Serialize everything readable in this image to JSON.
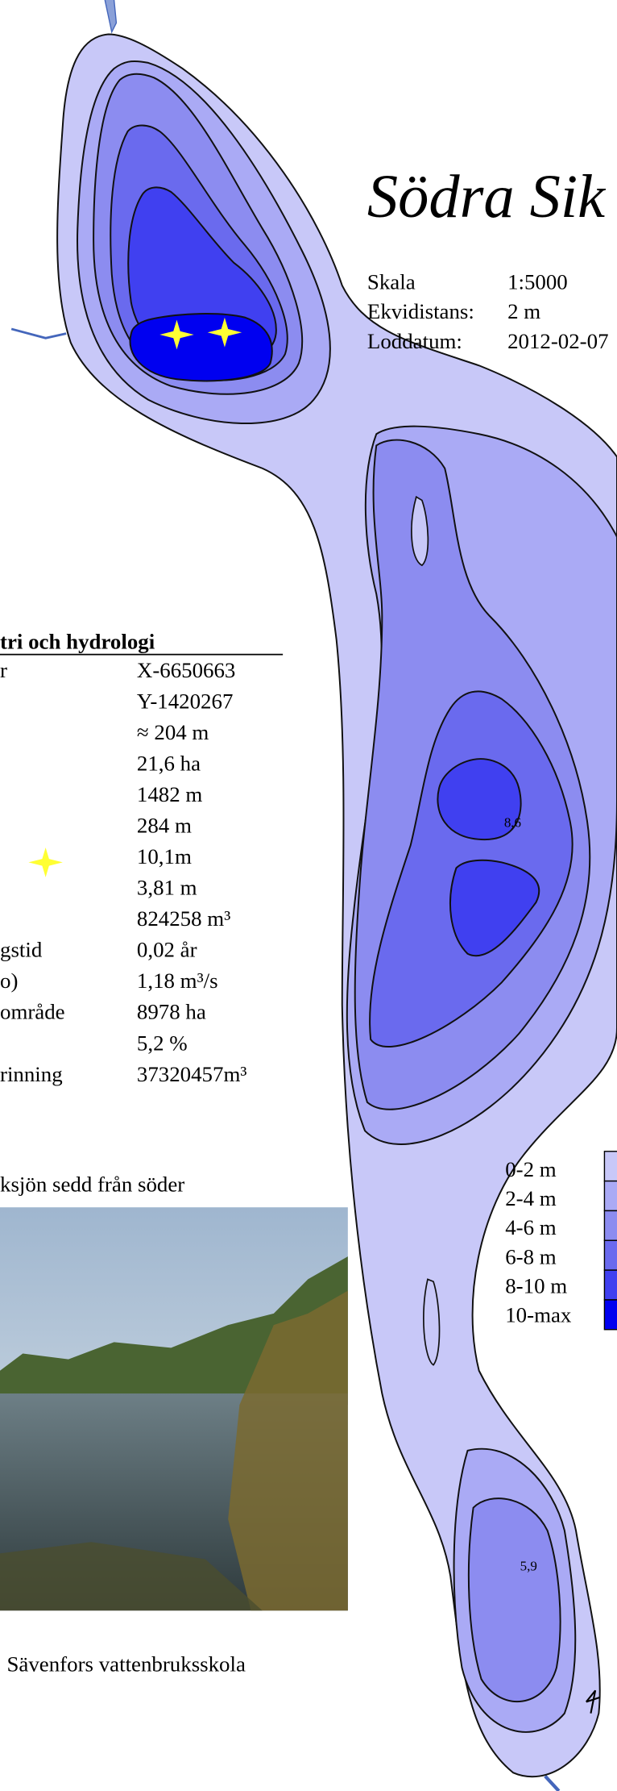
{
  "map": {
    "title": "Södra Sik",
    "info": [
      {
        "label": "Skala",
        "value": "1:5000"
      },
      {
        "label": "Ekvidistans:",
        "value": "2 m"
      },
      {
        "label": "Loddatum:",
        "value": "2012-02-07"
      }
    ],
    "depth_labels": [
      "8,6",
      "5,9"
    ]
  },
  "table": {
    "heading": "tri och hydrologi",
    "rows": [
      {
        "label": "r",
        "value": "X-6650663"
      },
      {
        "value": "Y-1420267"
      },
      {
        "value": "≈ 204 m"
      },
      {
        "value": "21,6 ha"
      },
      {
        "value": "1482 m"
      },
      {
        "value": "284 m"
      },
      {
        "value": "10,1m"
      },
      {
        "value": "3,81 m"
      },
      {
        "value": "824258 m³"
      },
      {
        "label": "gstid",
        "value": "0,02 år"
      },
      {
        "label": "o)",
        "value": "1,18 m³/s"
      },
      {
        "label": "område",
        "value": "8978 ha"
      },
      {
        "value": "5,2 %"
      },
      {
        "label": "rinning",
        "value": "37320457m³"
      }
    ]
  },
  "photo": {
    "caption": "ksjön sedd från söder"
  },
  "legend": [
    {
      "label": "0-2 m",
      "color": "#c8c8f8"
    },
    {
      "label": "2-4 m",
      "color": "#aaaaf5"
    },
    {
      "label": "4-6 m",
      "color": "#8c8cf0"
    },
    {
      "label": "6-8 m",
      "color": "#6a6aee"
    },
    {
      "label": "8-10 m",
      "color": "#4040f0"
    },
    {
      "label": "10-max",
      "color": "#0000f0"
    }
  ],
  "footer": "Sävenfors vattenbruksskola"
}
